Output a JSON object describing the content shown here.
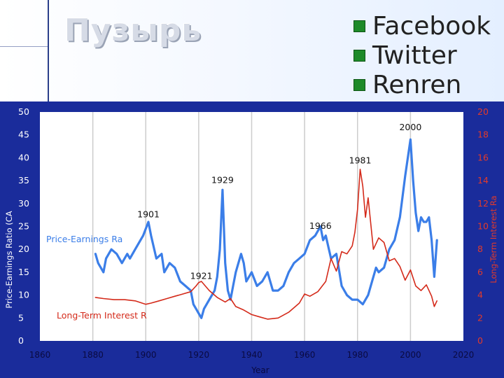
{
  "slide": {
    "title": "Пузырь",
    "bullets": [
      "Facebook",
      "Twitter",
      "Renren"
    ]
  },
  "colors": {
    "chart_background": "#1a2c9b",
    "plot_background": "#ffffff",
    "grid": "#cccccc",
    "pe_series": "#3b7ee8",
    "rate_series": "#d42a1a",
    "left_axis_text": "#ffffff",
    "right_axis_text": "#e23a2a",
    "bullet": "#1d8a28"
  },
  "chart_data": {
    "type": "line",
    "xlabel": "Year",
    "ylabel": "Price-Earnings Ratio (CA",
    "y2label": "Long-Term Interest Ra",
    "xlim": [
      1860,
      2020
    ],
    "ylim": [
      0,
      50
    ],
    "y2lim": [
      0,
      20
    ],
    "x_ticks": [
      "1860",
      "1880",
      "1900",
      "1920",
      "1940",
      "1960",
      "1980",
      "2000",
      "2020"
    ],
    "y_ticks": [
      "0",
      "5",
      "10",
      "15",
      "20",
      "25",
      "30",
      "35",
      "40",
      "45",
      "50"
    ],
    "y2_ticks": [
      "0",
      "2",
      "4",
      "6",
      "8",
      "10",
      "12",
      "14",
      "16",
      "18",
      "20"
    ],
    "grid": "vertical",
    "series": [
      {
        "name": "Price-Earnings Ra",
        "axis": "left",
        "x": [
          1881,
          1882,
          1884,
          1885,
          1887,
          1889,
          1891,
          1893,
          1894,
          1896,
          1898,
          1899,
          1901,
          1902,
          1904,
          1906,
          1907,
          1909,
          1911,
          1913,
          1915,
          1917,
          1918,
          1919,
          1920,
          1921,
          1922,
          1924,
          1926,
          1927,
          1928,
          1929,
          1929.5,
          1930,
          1931,
          1932,
          1933,
          1934,
          1936,
          1937,
          1938,
          1940,
          1942,
          1944,
          1946,
          1948,
          1950,
          1952,
          1954,
          1956,
          1958,
          1960,
          1962,
          1964,
          1966,
          1967,
          1968,
          1970,
          1972,
          1974,
          1976,
          1978,
          1980,
          1982,
          1984,
          1986,
          1987,
          1988,
          1990,
          1992,
          1994,
          1996,
          1998,
          1999,
          2000,
          2001,
          2002,
          2003,
          2004,
          2005,
          2006,
          2007,
          2008,
          2009,
          2010
        ],
        "y": [
          19,
          17,
          15,
          18,
          20,
          19,
          17,
          19,
          18,
          20,
          22,
          23,
          26,
          23,
          18,
          19,
          15,
          17,
          16,
          13,
          12,
          11,
          8,
          7,
          6,
          5,
          7,
          9,
          11,
          14,
          20,
          33,
          25,
          17,
          11,
          9,
          12,
          15,
          19,
          17,
          13,
          15,
          12,
          13,
          15,
          11,
          11,
          12,
          15,
          17,
          18,
          19,
          22,
          23,
          25,
          22,
          23,
          18,
          19,
          12,
          10,
          9,
          9,
          8,
          10,
          14,
          16,
          15,
          16,
          20,
          22,
          27,
          36,
          40,
          44,
          35,
          28,
          24,
          27,
          26,
          26,
          27,
          22,
          14,
          22
        ]
      },
      {
        "name": "Long-Term Interest R",
        "axis": "right",
        "x": [
          1881,
          1884,
          1888,
          1892,
          1896,
          1900,
          1902,
          1905,
          1908,
          1911,
          1914,
          1917,
          1919,
          1920,
          1921,
          1924,
          1927,
          1930,
          1932,
          1934,
          1937,
          1940,
          1943,
          1946,
          1950,
          1954,
          1958,
          1960,
          1962,
          1965,
          1968,
          1970,
          1972,
          1974,
          1976,
          1978,
          1979,
          1980,
          1981,
          1982,
          1983,
          1984,
          1986,
          1988,
          1990,
          1992,
          1994,
          1996,
          1998,
          2000,
          2002,
          2004,
          2006,
          2008,
          2009,
          2010
        ],
        "y": [
          3.8,
          3.7,
          3.6,
          3.6,
          3.5,
          3.2,
          3.3,
          3.5,
          3.7,
          3.9,
          4.1,
          4.3,
          4.8,
          5.1,
          5.2,
          4.4,
          3.8,
          3.4,
          3.7,
          3.0,
          2.7,
          2.3,
          2.1,
          1.9,
          2.0,
          2.5,
          3.3,
          4.1,
          3.9,
          4.3,
          5.2,
          7.2,
          6.1,
          7.8,
          7.6,
          8.3,
          9.5,
          11.5,
          15.0,
          13.5,
          10.8,
          12.5,
          8.0,
          9.0,
          8.6,
          7.0,
          7.2,
          6.5,
          5.3,
          6.2,
          4.8,
          4.4,
          4.9,
          3.9,
          3.0,
          3.5
        ]
      }
    ],
    "annotations": [
      {
        "text": "2000",
        "x": 2000,
        "y": 46,
        "axis": "left"
      },
      {
        "text": "1981",
        "x": 1981,
        "y": 15.5,
        "axis": "right"
      },
      {
        "text": "1929",
        "x": 1929,
        "y": 34.5,
        "axis": "left"
      },
      {
        "text": "1901",
        "x": 1901,
        "y": 27,
        "axis": "left"
      },
      {
        "text": "1966",
        "x": 1966,
        "y": 24.5,
        "axis": "left"
      },
      {
        "text": "1921",
        "x": 1921,
        "y": 13.5,
        "axis": "left"
      }
    ]
  }
}
